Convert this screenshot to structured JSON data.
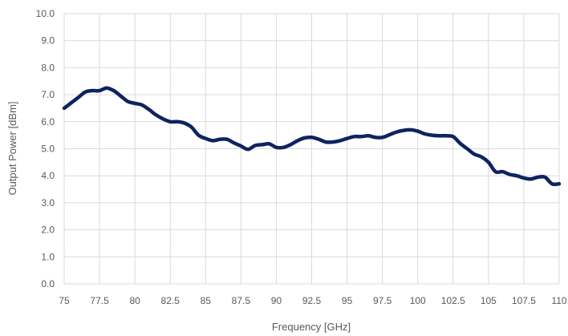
{
  "chart_data": {
    "type": "line",
    "title": "",
    "xlabel": "Frequency [GHz]",
    "ylabel": "Output Power [dBm]",
    "xlim": [
      75,
      110
    ],
    "ylim": [
      0,
      10
    ],
    "x_ticks": [
      "75",
      "77.5",
      "80",
      "82.5",
      "85",
      "87.5",
      "90",
      "92.5",
      "95",
      "97.5",
      "100",
      "102.5",
      "105",
      "107.5",
      "110"
    ],
    "y_ticks": [
      "0.0",
      "1.0",
      "2.0",
      "3.0",
      "4.0",
      "5.0",
      "6.0",
      "7.0",
      "8.0",
      "9.0",
      "10.0"
    ],
    "grid": true,
    "legend": "none",
    "series": [
      {
        "color": "#0d2460",
        "x": [
          75,
          75.5,
          76,
          76.5,
          77,
          77.5,
          78,
          78.5,
          79,
          79.5,
          80,
          80.5,
          81,
          81.5,
          82,
          82.5,
          83,
          83.5,
          84,
          84.5,
          85,
          85.5,
          86,
          86.5,
          87,
          87.5,
          88,
          88.5,
          89,
          89.5,
          90,
          90.5,
          91,
          91.5,
          92,
          92.5,
          93,
          93.5,
          94,
          94.5,
          95,
          95.5,
          96,
          96.5,
          97,
          97.5,
          98,
          98.5,
          99,
          99.5,
          100,
          100.5,
          101,
          101.5,
          102,
          102.5,
          103,
          103.5,
          104,
          104.5,
          105,
          105.5,
          106,
          106.5,
          107,
          107.5,
          108,
          108.5,
          109,
          109.5,
          110
        ],
        "values": [
          6.5,
          6.7,
          6.9,
          7.1,
          7.15,
          7.15,
          7.25,
          7.15,
          6.95,
          6.75,
          6.68,
          6.62,
          6.45,
          6.25,
          6.1,
          6.0,
          6.0,
          5.95,
          5.8,
          5.5,
          5.38,
          5.3,
          5.35,
          5.35,
          5.22,
          5.1,
          4.98,
          5.12,
          5.15,
          5.18,
          5.05,
          5.05,
          5.15,
          5.3,
          5.4,
          5.42,
          5.35,
          5.25,
          5.25,
          5.3,
          5.38,
          5.45,
          5.45,
          5.48,
          5.42,
          5.42,
          5.52,
          5.62,
          5.68,
          5.7,
          5.65,
          5.55,
          5.5,
          5.48,
          5.48,
          5.45,
          5.2,
          5.0,
          4.8,
          4.7,
          4.5,
          4.15,
          4.15,
          4.05,
          4.0,
          3.92,
          3.88,
          3.95,
          3.95,
          3.7,
          3.7
        ]
      }
    ]
  }
}
